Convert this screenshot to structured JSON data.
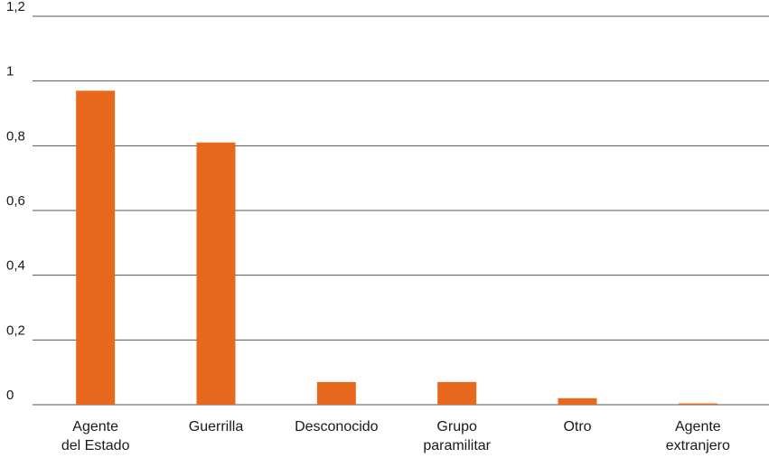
{
  "chart_data": {
    "type": "bar",
    "title": "",
    "xlabel": "",
    "ylabel": "",
    "ylim": [
      0,
      1.2
    ],
    "yticks": [
      {
        "value": 0,
        "label": "0"
      },
      {
        "value": 0.2,
        "label": "0,2"
      },
      {
        "value": 0.4,
        "label": "0,4"
      },
      {
        "value": 0.6,
        "label": "0,6"
      },
      {
        "value": 0.8,
        "label": "0,8"
      },
      {
        "value": 1,
        "label": "1"
      },
      {
        "value": 1.2,
        "label": "1,2"
      }
    ],
    "categories": [
      [
        "Agente",
        "del Estado"
      ],
      [
        "Guerrilla"
      ],
      [
        "Desconocido"
      ],
      [
        "Grupo",
        "paramilitar"
      ],
      [
        "Otro"
      ],
      [
        "Agente",
        "extranjero"
      ]
    ],
    "values": [
      0.97,
      0.81,
      0.07,
      0.07,
      0.02,
      0.004
    ],
    "grid": true,
    "legend": "none",
    "bar_color": "#e8681e",
    "grid_color": "#555555"
  }
}
